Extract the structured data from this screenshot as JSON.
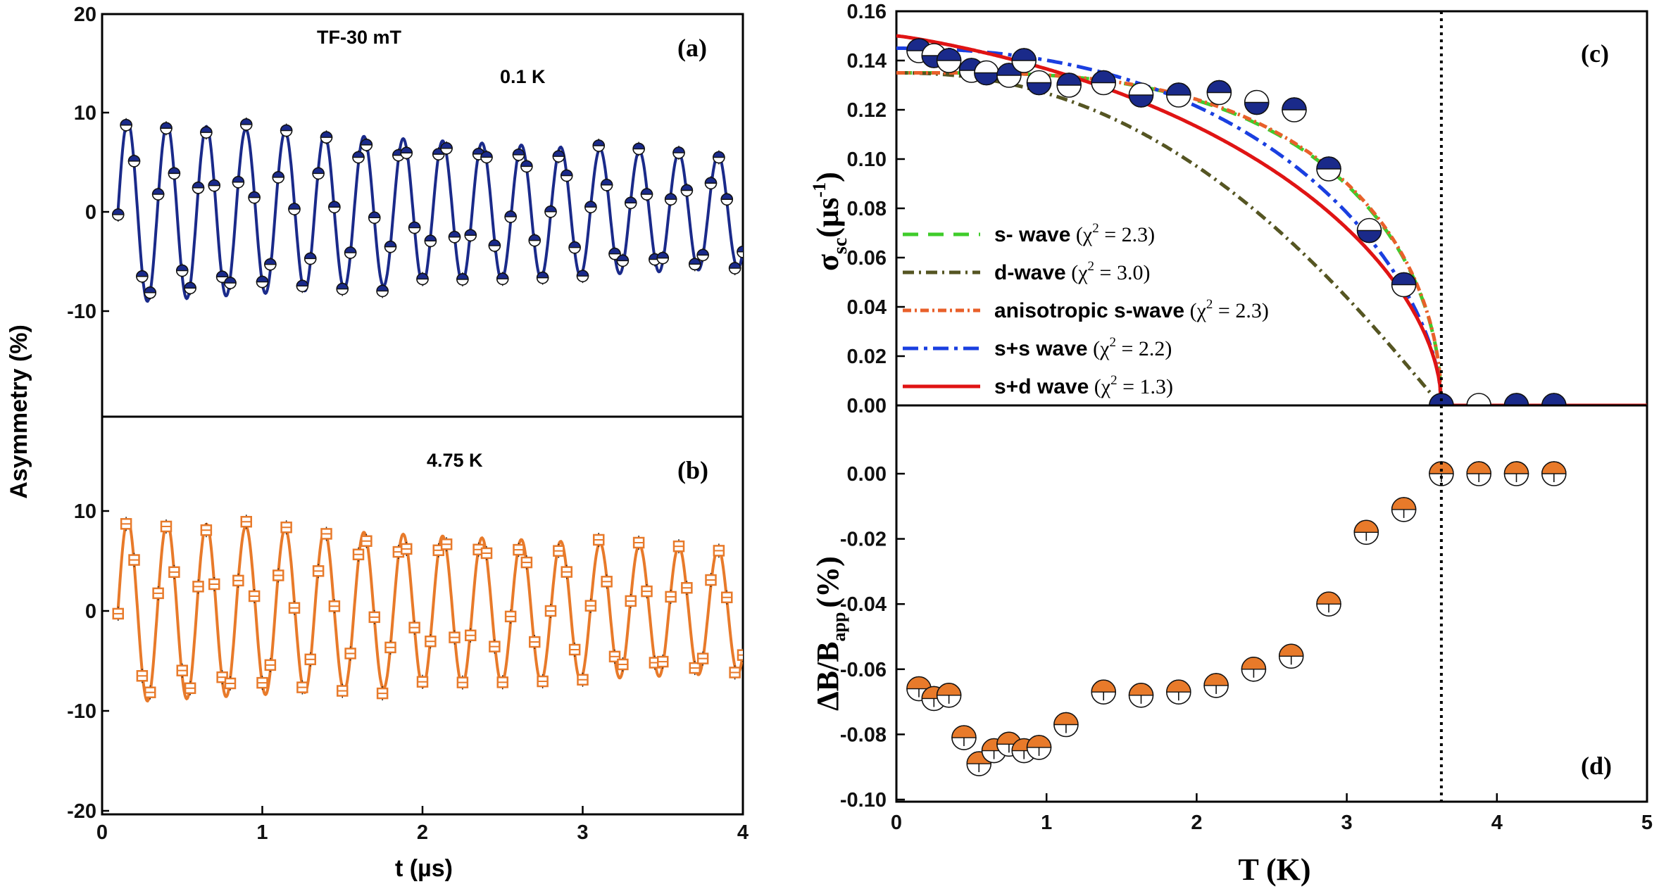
{
  "chart_data": [
    {
      "id": "a",
      "type": "scatter",
      "panel_label": "(a)",
      "annotations": [
        "TF-30 mT",
        "0.1 K"
      ],
      "xlabel": "t (µs)",
      "ylabel": "Asymmetry (%)",
      "xlim": [
        0,
        4
      ],
      "ylim": [
        -20,
        20
      ],
      "xticks": [
        "0",
        "1",
        "2",
        "3",
        "4"
      ],
      "yticks": [
        "20",
        "10",
        "0",
        "-10"
      ],
      "model": {
        "amplitude": 14,
        "frequency_MHz": 4.07,
        "phase": 2.19,
        "damping": 0.125
      },
      "color": "#1a2a8a"
    },
    {
      "id": "b",
      "type": "scatter",
      "panel_label": "(b)",
      "annotations": [
        "4.75 K"
      ],
      "xlabel": "t (µs)",
      "ylabel": "Asymmetry (%)",
      "xlim": [
        0,
        4
      ],
      "ylim": [
        -20,
        20
      ],
      "xticks": [
        "0",
        "1",
        "2",
        "3",
        "4"
      ],
      "yticks": [
        "10",
        "0",
        "-10",
        "-20"
      ],
      "model": {
        "amplitude": 14,
        "frequency_MHz": 4.07,
        "phase": 2.19,
        "damping": 0.1
      },
      "color": "#e87a2a"
    },
    {
      "id": "c",
      "type": "line",
      "panel_label": "(c)",
      "ylabel_main": "σ",
      "ylabel_sub": "sc",
      "ylabel_unit_open": "(µs",
      "ylabel_unit_exp": "-1",
      "ylabel_unit_close": ")",
      "xlim": [
        0,
        5
      ],
      "ylim": [
        0,
        0.16
      ],
      "yticks": [
        "0.16",
        "0.14",
        "0.12",
        "0.10",
        "0.08",
        "0.06",
        "0.04",
        "0.02",
        "0.00"
      ],
      "Tc": 3.63,
      "points": [
        [
          0.15,
          0.144
        ],
        [
          0.25,
          0.142
        ],
        [
          0.35,
          0.14
        ],
        [
          0.5,
          0.136
        ],
        [
          0.6,
          0.135
        ],
        [
          0.75,
          0.134
        ],
        [
          0.85,
          0.14
        ],
        [
          0.95,
          0.131
        ],
        [
          1.15,
          0.13
        ],
        [
          1.38,
          0.131
        ],
        [
          1.63,
          0.126
        ],
        [
          1.88,
          0.126
        ],
        [
          2.15,
          0.127
        ],
        [
          2.4,
          0.123
        ],
        [
          2.65,
          0.12
        ],
        [
          2.88,
          0.096
        ],
        [
          3.15,
          0.071
        ],
        [
          3.38,
          0.049
        ],
        [
          3.63,
          0.0
        ],
        [
          3.88,
          0.0
        ],
        [
          4.13,
          0.0
        ],
        [
          4.38,
          0.0
        ]
      ],
      "series": [
        {
          "name": "s- wave",
          "chi2": "2.3",
          "model": "s",
          "sigma0": 0.135,
          "color": "#3fcc2b",
          "dash": "22,14"
        },
        {
          "name": "d-wave",
          "chi2": "3.0",
          "model": "d",
          "sigma0": 0.135,
          "color": "#555522",
          "dash": "16,7,3,7"
        },
        {
          "name": "anisotropic s-wave",
          "chi2": "2.3",
          "model": "anis",
          "sigma0": 0.135,
          "color": "#e8602a",
          "dash": "12,5,3,5"
        },
        {
          "name": "s+s wave",
          "chi2": "2.2",
          "model": "ss",
          "sigma0": 0.145,
          "color": "#1a3fe0",
          "dash": "22,8,5,8"
        },
        {
          "name": "s+d wave",
          "chi2": "1.3",
          "model": "sd",
          "sigma0": 0.15,
          "color": "#e01414",
          "dash": ""
        }
      ],
      "legend_position": "center-left"
    },
    {
      "id": "d",
      "type": "scatter",
      "panel_label": "(d)",
      "ylabel_main": "ΔB/B",
      "ylabel_sub": "app",
      "ylabel_unit": "(%)",
      "xlabel": "T (K)",
      "xlim": [
        0,
        5
      ],
      "ylim": [
        -0.1,
        0.02
      ],
      "xticks": [
        "0",
        "1",
        "2",
        "3",
        "4",
        "5"
      ],
      "yticks": [
        "0.00",
        "-0.02",
        "-0.04",
        "-0.06",
        "-0.08",
        "-0.10"
      ],
      "Tc": 3.63,
      "points": [
        [
          0.15,
          -0.066
        ],
        [
          0.25,
          -0.069
        ],
        [
          0.35,
          -0.068
        ],
        [
          0.45,
          -0.081
        ],
        [
          0.55,
          -0.089
        ],
        [
          0.65,
          -0.085
        ],
        [
          0.75,
          -0.083
        ],
        [
          0.85,
          -0.085
        ],
        [
          0.95,
          -0.084
        ],
        [
          1.13,
          -0.077
        ],
        [
          1.38,
          -0.067
        ],
        [
          1.63,
          -0.068
        ],
        [
          1.88,
          -0.067
        ],
        [
          2.13,
          -0.065
        ],
        [
          2.38,
          -0.06
        ],
        [
          2.63,
          -0.056
        ],
        [
          2.88,
          -0.04
        ],
        [
          3.13,
          -0.018
        ],
        [
          3.38,
          -0.011
        ],
        [
          3.63,
          0.0
        ],
        [
          3.88,
          0.0
        ],
        [
          4.13,
          0.0
        ],
        [
          4.38,
          0.0
        ]
      ],
      "color": "#e87a2a"
    }
  ]
}
